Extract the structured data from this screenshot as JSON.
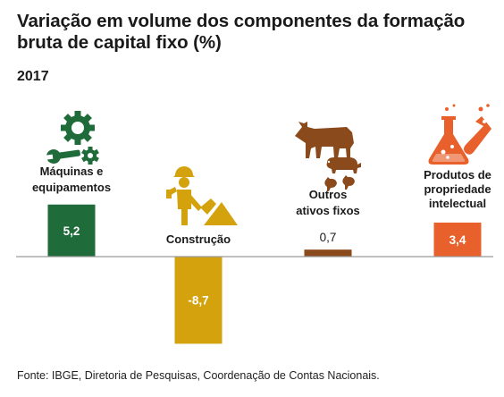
{
  "header": {
    "title": "Variação em volume dos componentes da formação bruta de capital fixo (%)",
    "subtitle": "2017"
  },
  "footer": {
    "source": "Fonte: IBGE, Diretoria de Pesquisas, Coordenação de Contas Nacionais."
  },
  "chart_data": {
    "type": "bar",
    "categories": [
      "Máquinas e equipamentos",
      "Construção",
      "Outros ativos fixos",
      "Produtos de propriedade intelectual"
    ],
    "category_lines": [
      [
        "Máquinas e",
        "equipamentos"
      ],
      [
        "Construção"
      ],
      [
        "Outros",
        "ativos fixos"
      ],
      [
        "Produtos de",
        "propriedade",
        "intelectual"
      ]
    ],
    "values": [
      5.2,
      -8.7,
      0.7,
      3.4
    ],
    "value_labels": [
      "5,2",
      "-8,7",
      "0,7",
      "3,4"
    ],
    "colors": [
      "#1f6b3a",
      "#d4a20c",
      "#8b4a1c",
      "#e8612c"
    ],
    "icons": [
      "gears-wrench-icon",
      "construction-worker-icon",
      "livestock-icon",
      "lab-flask-icon"
    ],
    "title": "",
    "xlabel": "",
    "ylabel": "",
    "grid": false,
    "legend": "none"
  }
}
